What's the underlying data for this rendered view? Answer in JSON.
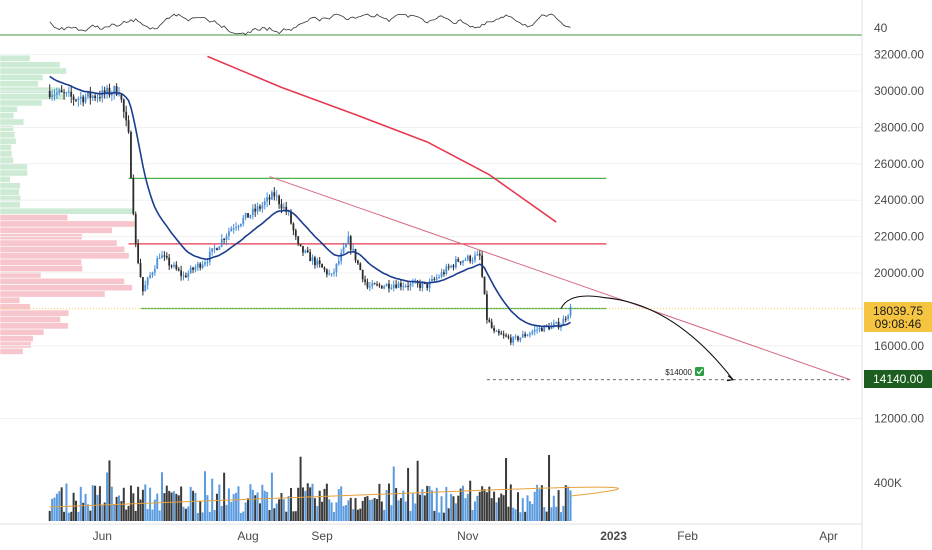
{
  "chart_data": {
    "type": "candlestick",
    "title": "",
    "price_axis": {
      "ticks": [
        "32000.00",
        "30000.00",
        "28000.00",
        "26000.00",
        "24000.00",
        "22000.00",
        "20000.00",
        "16000.00",
        "12000.00"
      ],
      "tick_values": [
        32000,
        30000,
        28000,
        26000,
        24000,
        22000,
        20000,
        16000,
        12000
      ],
      "range": [
        8500,
        33600
      ]
    },
    "rsi_axis": {
      "label": "40",
      "value": 40
    },
    "volume_axis": {
      "label": "400K"
    },
    "time_axis": {
      "labels": [
        "Jun",
        "Aug",
        "Sep",
        "Nov",
        "2023",
        "Feb",
        "Apr"
      ],
      "label_dates": [
        "2022-06-01",
        "2022-08-01",
        "2022-09-01",
        "2022-11-01",
        "2023-01-01",
        "2023-02-01",
        "2023-04-01"
      ],
      "range": [
        "2022-04-15",
        "2023-04-15"
      ]
    },
    "current_price": {
      "label": "18039.75",
      "value": 18039.75,
      "countdown": "09:08:46",
      "color": "#f5c542"
    },
    "target_price": {
      "label": "14140.00",
      "value": 14140,
      "color": "#1b5e20"
    },
    "annotation": {
      "text": "$14000",
      "check_icon": "check-mark-icon",
      "value": 14000
    },
    "horizontal_levels": [
      {
        "value": 25200,
        "color": "#4caf50"
      },
      {
        "value": 21600,
        "color": "#e53950"
      },
      {
        "value": 18050,
        "color": "#4caf50"
      }
    ],
    "trendline": {
      "from": [
        "2022-08-10",
        25300
      ],
      "to": [
        "2023-04-10",
        14140
      ],
      "color": "#d46a7e"
    },
    "ma_long": {
      "color": "#e53950",
      "points": [
        [
          "2022-07-15",
          31900
        ],
        [
          "2022-08-15",
          30200
        ],
        [
          "2022-09-15",
          28700
        ],
        [
          "2022-10-15",
          27200
        ],
        [
          "2022-11-10",
          25400
        ],
        [
          "2022-12-08",
          22800
        ]
      ]
    },
    "ma_short": {
      "color": "#1a3d8f"
    },
    "projection": {
      "from": [
        "2022-12-10",
        18040
      ],
      "peak": [
        "2022-12-28",
        18650
      ],
      "to": [
        "2023-02-20",
        14140
      ]
    },
    "colors": {
      "up": "#4a90d9",
      "down": "#2b2b2b",
      "grid": "#f0f0f0",
      "profile_green": "#cdebd4",
      "profile_red": "#f7c6cc"
    }
  }
}
